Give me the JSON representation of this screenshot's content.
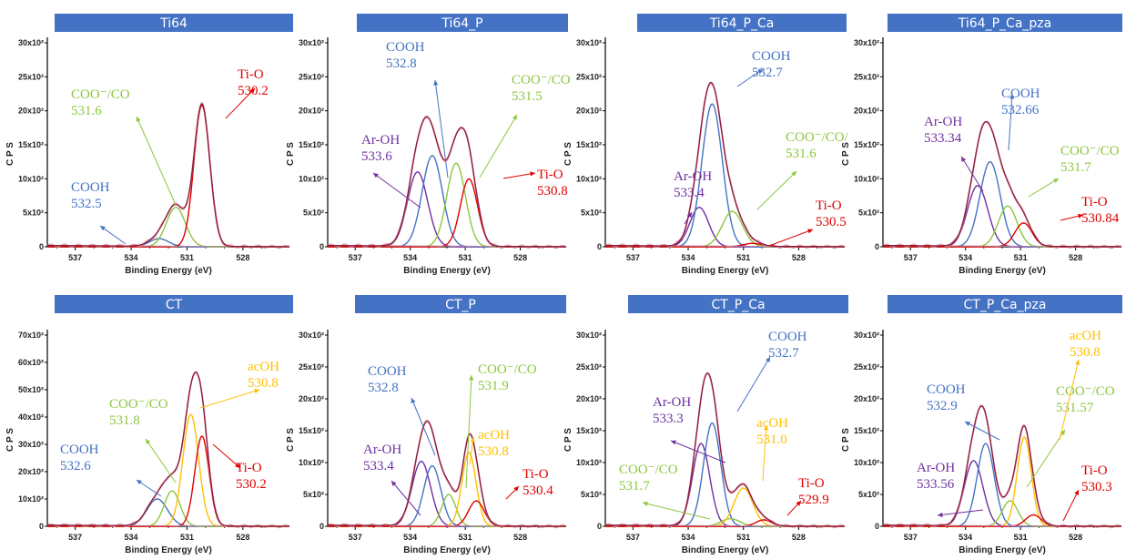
{
  "axis_common": {
    "xlabel": "Binding Energy (eV)",
    "ylabel": "C P S",
    "x_ticks": [
      "537",
      "534",
      "531",
      "528"
    ],
    "x_range": [
      538.5,
      525.5
    ]
  },
  "colors": {
    "title_bar": "#4472C4",
    "envelope": "#8B1A3A",
    "raw_points": "#D98A9E",
    "baseline": "#C080A0",
    "blue": "#4472C4",
    "green": "#8DC63F",
    "red": "#E00000",
    "purple": "#7030A0",
    "yellow": "#FFC000"
  },
  "chart_data": [
    {
      "type": "line",
      "title": "Ti64",
      "xlabel": "Binding Energy (eV)",
      "ylabel": "C P S",
      "x_ticks": [
        "537",
        "534",
        "531",
        "528"
      ],
      "y_ticks": [
        "0",
        "5x10²",
        "10x10²",
        "15x10²",
        "20x10²",
        "25x10²",
        "30x10²"
      ],
      "ylim": [
        0,
        3000
      ],
      "peaks": [
        {
          "label": "COOH",
          "be": "532.5",
          "center": 532.5,
          "height": 120,
          "width": 1.2,
          "color": "blue"
        },
        {
          "label": "COO⁻/CO",
          "be": "531.6",
          "center": 531.6,
          "height": 580,
          "width": 1.2,
          "color": "green"
        },
        {
          "label": "Ti-O",
          "be": "530.2",
          "center": 530.2,
          "height": 2080,
          "width": 1.0,
          "color": "red"
        }
      ]
    },
    {
      "type": "line",
      "title": "Ti64_P",
      "xlabel": "Binding Energy (eV)",
      "ylabel": "C P S",
      "x_ticks": [
        "537",
        "534",
        "531",
        "528"
      ],
      "y_ticks": [
        "0",
        "5x10²",
        "10x10²",
        "15x10²",
        "20x10²",
        "25x10²",
        "30x10²"
      ],
      "ylim": [
        0,
        3000
      ],
      "peaks": [
        {
          "label": "Ar-OH",
          "be": "533.6",
          "center": 533.6,
          "height": 1100,
          "width": 1.3,
          "color": "purple"
        },
        {
          "label": "COOH",
          "be": "532.8",
          "center": 532.8,
          "height": 1340,
          "width": 1.3,
          "color": "blue"
        },
        {
          "label": "COO⁻/CO",
          "be": "531.5",
          "center": 531.5,
          "height": 1230,
          "width": 1.2,
          "color": "green"
        },
        {
          "label": "Ti-O",
          "be": "530.8",
          "center": 530.8,
          "height": 1000,
          "width": 1.1,
          "color": "red"
        }
      ]
    },
    {
      "type": "line",
      "title": "Ti64_P_Ca",
      "xlabel": "Binding Energy (eV)",
      "ylabel": "C P S",
      "x_ticks": [
        "537",
        "534",
        "531",
        "528"
      ],
      "y_ticks": [
        "0",
        "5x10²",
        "10x10²",
        "15x10²",
        "20x10²",
        "25x10²",
        "30x10²"
      ],
      "ylim": [
        0,
        3000
      ],
      "peaks": [
        {
          "label": "Ar-OH",
          "be": "533.4",
          "center": 533.4,
          "height": 580,
          "width": 1.2,
          "color": "purple"
        },
        {
          "label": "COOH",
          "be": "532.7",
          "center": 532.7,
          "height": 2100,
          "width": 1.3,
          "color": "blue"
        },
        {
          "label": "COO⁻/CO/",
          "be": "531.6",
          "center": 531.6,
          "height": 520,
          "width": 1.3,
          "color": "green"
        },
        {
          "label": "Ti-O",
          "be": "530.5",
          "center": 530.5,
          "height": 50,
          "width": 1.2,
          "color": "red"
        }
      ]
    },
    {
      "type": "line",
      "title": "Ti64_P_Ca_pza",
      "xlabel": "Binding Energy (eV)",
      "ylabel": "C P S",
      "x_ticks": [
        "537",
        "534",
        "531",
        "528"
      ],
      "y_ticks": [
        "0",
        "5x10²",
        "10x10²",
        "15x10²",
        "20x10²",
        "25x10²",
        "30x10²"
      ],
      "ylim": [
        0,
        3000
      ],
      "peaks": [
        {
          "label": "Ar-OH",
          "be": "533.34",
          "center": 533.34,
          "height": 900,
          "width": 1.3,
          "color": "purple"
        },
        {
          "label": "COOH",
          "be": "532.66",
          "center": 532.66,
          "height": 1250,
          "width": 1.3,
          "color": "blue"
        },
        {
          "label": "COO⁻/CO",
          "be": "531.7",
          "center": 531.7,
          "height": 600,
          "width": 1.2,
          "color": "green"
        },
        {
          "label": "Ti-O",
          "be": "530.84",
          "center": 530.84,
          "height": 350,
          "width": 1.1,
          "color": "red"
        }
      ]
    },
    {
      "type": "line",
      "title": "CT",
      "xlabel": "Binding Energy (eV)",
      "ylabel": "C P S",
      "x_ticks": [
        "537",
        "534",
        "531",
        "528"
      ],
      "y_ticks": [
        "0",
        "10x10²",
        "20x10²",
        "30x10²",
        "40x10²",
        "50x10²",
        "60x10²",
        "70x10²"
      ],
      "ylim": [
        0,
        7000
      ],
      "peaks": [
        {
          "label": "COOH",
          "be": "532.6",
          "center": 532.6,
          "height": 1000,
          "width": 1.3,
          "color": "blue"
        },
        {
          "label": "COO⁻/CO",
          "be": "531.8",
          "center": 531.8,
          "height": 1300,
          "width": 1.0,
          "color": "green"
        },
        {
          "label": "acOH",
          "be": "530.8",
          "center": 530.8,
          "height": 4100,
          "width": 1.0,
          "color": "yellow"
        },
        {
          "label": "Ti-O",
          "be": "530.2",
          "center": 530.2,
          "height": 3300,
          "width": 0.9,
          "color": "red"
        }
      ]
    },
    {
      "type": "line",
      "title": "CT_P",
      "xlabel": "Binding Energy (eV)",
      "ylabel": "C P S",
      "x_ticks": [
        "537",
        "534",
        "531",
        "528"
      ],
      "y_ticks": [
        "0",
        "5x10²",
        "10x10²",
        "15x10²",
        "20x10²",
        "25x10²",
        "30x10²"
      ],
      "ylim": [
        0,
        3000
      ],
      "peaks": [
        {
          "label": "Ar-OH",
          "be": "533.4",
          "center": 533.4,
          "height": 1020,
          "width": 1.2,
          "color": "purple"
        },
        {
          "label": "COOH",
          "be": "532.8",
          "center": 532.8,
          "height": 950,
          "width": 1.1,
          "color": "blue"
        },
        {
          "label": "COO⁻/CO",
          "be": "531.9",
          "center": 531.9,
          "height": 500,
          "width": 0.9,
          "color": "green"
        },
        {
          "label": "acOH",
          "be": "530.8",
          "center": 530.8,
          "height": 1160,
          "width": 0.9,
          "color": "yellow"
        },
        {
          "label": "Ti-O",
          "be": "530.4",
          "center": 530.4,
          "height": 400,
          "width": 1.0,
          "color": "red"
        }
      ]
    },
    {
      "type": "line",
      "title": "CT_P_Ca",
      "xlabel": "Binding Energy (eV)",
      "ylabel": "C P S",
      "x_ticks": [
        "537",
        "534",
        "531",
        "528"
      ],
      "y_ticks": [
        "0",
        "5x10²",
        "10x10²",
        "15x10²",
        "20x10²",
        "25x10²",
        "30x10²"
      ],
      "ylim": [
        0,
        3000
      ],
      "peaks": [
        {
          "label": "Ar-OH",
          "be": "533.3",
          "center": 533.3,
          "height": 1300,
          "width": 1.1,
          "color": "purple"
        },
        {
          "label": "COOH",
          "be": "532.7",
          "center": 532.7,
          "height": 1620,
          "width": 1.1,
          "color": "blue"
        },
        {
          "label": "COO⁻/CO",
          "be": "531.7",
          "center": 531.7,
          "height": 120,
          "width": 1.2,
          "color": "green"
        },
        {
          "label": "acOH",
          "be": "531.0",
          "center": 531.0,
          "height": 600,
          "width": 1.2,
          "color": "yellow"
        },
        {
          "label": "Ti-O",
          "be": "529.9",
          "center": 529.9,
          "height": 100,
          "width": 1.0,
          "color": "red"
        }
      ]
    },
    {
      "type": "line",
      "title": "CT_P_Ca_pza",
      "xlabel": "Binding Energy (eV)",
      "ylabel": "C P S",
      "x_ticks": [
        "537",
        "534",
        "531",
        "528"
      ],
      "y_ticks": [
        "0",
        "5x10²",
        "10x10²",
        "15x10²",
        "20x10²",
        "25x10²",
        "30x10²"
      ],
      "ylim": [
        0,
        3000
      ],
      "peaks": [
        {
          "label": "Ar-OH",
          "be": "533.56",
          "center": 533.56,
          "height": 1030,
          "width": 1.2,
          "color": "purple"
        },
        {
          "label": "COOH",
          "be": "532.9",
          "center": 532.9,
          "height": 1300,
          "width": 1.1,
          "color": "blue"
        },
        {
          "label": "COO⁻/CO",
          "be": "531.57",
          "center": 531.57,
          "height": 400,
          "width": 1.0,
          "color": "green"
        },
        {
          "label": "acOH",
          "be": "530.8",
          "center": 530.8,
          "height": 1400,
          "width": 0.9,
          "color": "yellow"
        },
        {
          "label": "Ti-O",
          "be": "530.3",
          "center": 530.3,
          "height": 180,
          "width": 1.0,
          "color": "red"
        }
      ]
    }
  ]
}
